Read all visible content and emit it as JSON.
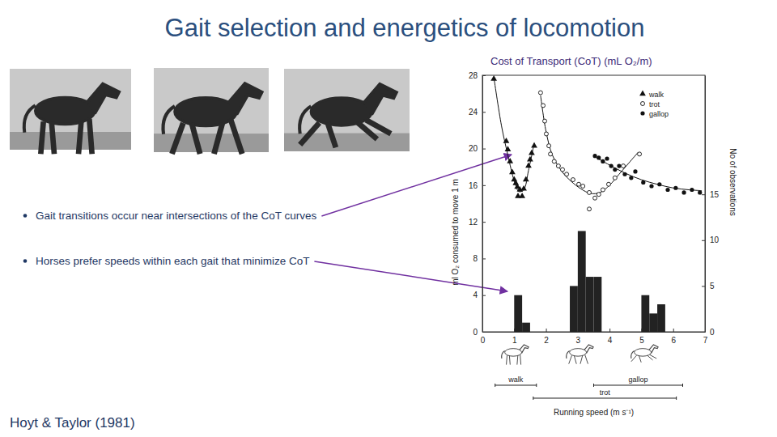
{
  "title": "Gait selection and energetics of locomotion",
  "bullets": [
    "Gait transitions occur near intersections of the CoT curves",
    "Horses prefer speeds within each gait that minimize CoT"
  ],
  "citation": "Hoyt & Taylor (1981)",
  "chart_data": {
    "type": "scatter",
    "title": "Cost of Transport (CoT) (mL O₂/m)",
    "x_label": "Running speed (m s⁻¹)",
    "y_label": "ml O₂ consumed to move 1 m",
    "y2_label": "No of observations",
    "xlim": [
      0,
      7
    ],
    "xticks": [
      0,
      1,
      2,
      3,
      4,
      5,
      6,
      7
    ],
    "ylim": [
      0,
      28
    ],
    "yticks": [
      0,
      4,
      8,
      12,
      16,
      20,
      24,
      28
    ],
    "y2lim": [
      0,
      28
    ],
    "y2ticks": [
      0,
      5,
      10,
      15
    ],
    "grid": false,
    "legend": "top-right",
    "series": [
      {
        "name": "walk",
        "color": "#111111",
        "marker": "triangle",
        "line_style": "solid",
        "x": [
          0.36,
          0.75,
          0.8,
          0.87,
          0.94,
          1.0,
          1.05,
          1.1,
          1.12,
          1.18,
          1.25,
          1.3,
          1.37,
          1.45,
          1.5,
          1.55,
          1.63
        ],
        "values": [
          27.6,
          20.8,
          19.9,
          18.6,
          17.4,
          16.6,
          16.2,
          15.8,
          14.8,
          15.5,
          14.8,
          15.6,
          16.6,
          18.1,
          18.8,
          19.5,
          20.3
        ],
        "fit": {
          "x": [
            0.36,
            0.6,
            0.8,
            1.0,
            1.15,
            1.3,
            1.45,
            1.63
          ],
          "values": [
            27.8,
            22.5,
            19.3,
            16.5,
            15.3,
            15.5,
            17.6,
            20.6
          ]
        }
      },
      {
        "name": "trot",
        "color": "#111111",
        "marker": "open_circle",
        "line_style": "solid",
        "x": [
          1.83,
          1.91,
          1.96,
          2.01,
          2.09,
          2.14,
          2.26,
          2.39,
          2.52,
          2.65,
          2.85,
          3.03,
          3.16,
          3.36,
          3.36,
          3.54,
          3.66,
          3.79,
          3.97,
          4.17,
          4.43,
          4.94
        ],
        "values": [
          26.1,
          24.7,
          23,
          21.6,
          20.3,
          19.4,
          18.6,
          18.1,
          17.7,
          17.2,
          16.6,
          16.1,
          15.9,
          15.2,
          13.4,
          14.6,
          15,
          15.5,
          16.1,
          16.8,
          18.1,
          19.4
        ],
        "fit": {
          "x": [
            1.83,
            2.0,
            2.2,
            2.5,
            2.8,
            3.1,
            3.4,
            3.7,
            4.0,
            4.3,
            4.6,
            4.9
          ],
          "values": [
            25.8,
            21.9,
            19.3,
            17.5,
            16.4,
            15.6,
            15.1,
            15.2,
            16,
            17.2,
            18.4,
            19.6
          ]
        }
      },
      {
        "name": "gallop",
        "color": "#111111",
        "marker": "circle",
        "line_style": "solid",
        "x": [
          3.54,
          3.66,
          3.79,
          3.92,
          4.05,
          4.17,
          4.3,
          4.48,
          4.68,
          4.81,
          5.06,
          5.32,
          5.57,
          5.83,
          6.08,
          6.34,
          6.59,
          6.84
        ],
        "values": [
          19.2,
          19,
          18.6,
          18.9,
          18.1,
          17.7,
          18.1,
          17.2,
          16.8,
          17.5,
          16.3,
          15.9,
          16.1,
          15.5,
          15.7,
          15.2,
          15.5,
          15.2
        ],
        "fit": {
          "x": [
            3.54,
            4.0,
            4.5,
            5.0,
            5.5,
            6.0,
            6.5,
            6.9
          ],
          "values": [
            19.1,
            18.2,
            17.3,
            16.6,
            16.1,
            15.7,
            15.5,
            15.4
          ]
        }
      }
    ],
    "histogram": {
      "axis": "y2",
      "color": "#222222",
      "bins": [
        1.0,
        1.25,
        1.5,
        1.75,
        2.0,
        2.25,
        2.5,
        2.75,
        3.0,
        3.25,
        3.5,
        3.75,
        4.0,
        4.25,
        4.5,
        4.75,
        5.0,
        5.25,
        5.5,
        5.75
      ],
      "counts": [
        4,
        1,
        0,
        0,
        0,
        0,
        0,
        5,
        11,
        6,
        6,
        0,
        0,
        0,
        0,
        0,
        4,
        2,
        3
      ]
    },
    "gait_ranges": [
      {
        "label": "walk",
        "range": [
          0.4,
          1.7
        ]
      },
      {
        "label": "trot",
        "range": [
          1.6,
          6.1
        ]
      },
      {
        "label": "gallop",
        "range": [
          3.5,
          6.3
        ]
      }
    ]
  }
}
